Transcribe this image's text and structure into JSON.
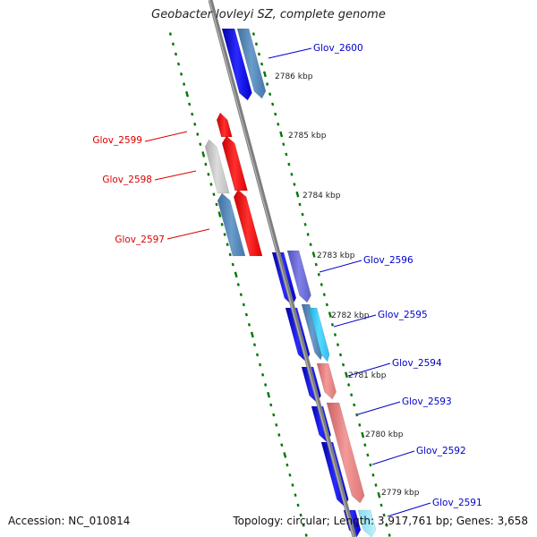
{
  "header": {
    "title": "Geobacter lovleyi SZ, complete genome"
  },
  "footer": {
    "accession": "Accession: NC_010814",
    "summary": "Topology: circular; Length: 3,917,761 bp; Genes: 3,658"
  },
  "colors": {
    "forward_strand_label": "#0000cc",
    "reverse_strand_label": "#dd0000",
    "backbone": "#888888",
    "tick": "#007700"
  },
  "scale_labels": [
    "2786 kbp",
    "2785 kbp",
    "2784 kbp",
    "2783 kbp",
    "2782 kbp",
    "2781 kbp",
    "2780 kbp",
    "2779 kbp"
  ],
  "genes": [
    {
      "label": "Glov_2600",
      "strand": "forward"
    },
    {
      "label": "Glov_2599",
      "strand": "reverse"
    },
    {
      "label": "Glov_2598",
      "strand": "reverse"
    },
    {
      "label": "Glov_2597",
      "strand": "reverse"
    },
    {
      "label": "Glov_2596",
      "strand": "forward"
    },
    {
      "label": "Glov_2595",
      "strand": "forward"
    },
    {
      "label": "Glov_2594",
      "strand": "forward"
    },
    {
      "label": "Glov_2593",
      "strand": "forward"
    },
    {
      "label": "Glov_2592",
      "strand": "forward"
    },
    {
      "label": "Glov_2591",
      "strand": "forward"
    }
  ]
}
